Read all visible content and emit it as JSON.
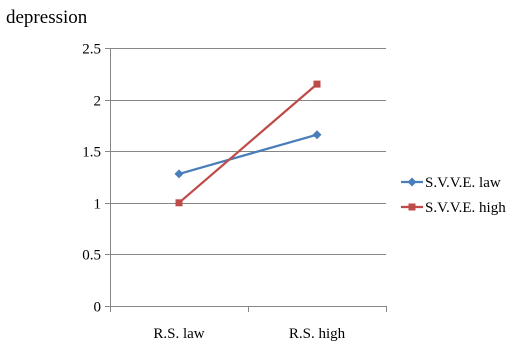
{
  "chart_data": {
    "type": "line",
    "title": "depression",
    "xlabel": "",
    "ylabel": "",
    "categories": [
      "R.S. law",
      "R.S. high"
    ],
    "series": [
      {
        "name": "S.V.V.E. law",
        "values": [
          1.28,
          1.66
        ],
        "color": "#4a7ebb",
        "marker": "diamond"
      },
      {
        "name": "S.V.V.E. high",
        "values": [
          1.0,
          2.15
        ],
        "color": "#be4b48",
        "marker": "square"
      }
    ],
    "ylim": [
      0,
      2.5
    ],
    "yticks": [
      "0",
      "0.5",
      "1",
      "1.5",
      "2",
      "2.5"
    ],
    "grid": true,
    "legend_position": "right",
    "axis_color": "#868686",
    "grid_color": "#868686"
  }
}
